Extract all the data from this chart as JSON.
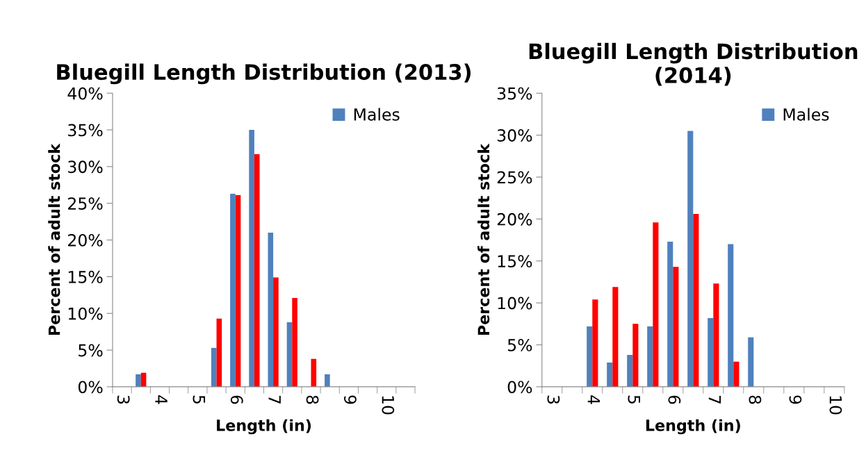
{
  "chart_data": [
    {
      "type": "bar",
      "title": "Bluegill Length Distribution (2013)",
      "xlabel": "Length (in)",
      "ylabel": "Percent of adult stock",
      "categories": [
        "3",
        null,
        "4",
        null,
        "5",
        null,
        "6",
        null,
        "7",
        null,
        "8",
        null,
        "9",
        null,
        "10",
        null
      ],
      "series": [
        {
          "name": "Males",
          "color": "#4f81bd",
          "values": [
            0,
            1.7,
            0,
            0,
            0,
            5.3,
            26.3,
            35,
            21,
            8.8,
            0,
            1.7,
            0,
            0,
            0,
            0
          ]
        },
        {
          "color": "#ff0000",
          "values": [
            0,
            1.9,
            0,
            0,
            0,
            9.3,
            26.1,
            31.7,
            14.9,
            12.1,
            3.8,
            0,
            0,
            0,
            0,
            0
          ]
        }
      ],
      "ylim": [
        0,
        40
      ],
      "yticks": [
        {
          "value": 0,
          "label": "0%"
        },
        {
          "value": 5,
          "label": "5%"
        },
        {
          "value": 10,
          "label": "10%"
        },
        {
          "value": 15,
          "label": "15%"
        },
        {
          "value": 20,
          "label": "20%"
        },
        {
          "value": 25,
          "label": "25%"
        },
        {
          "value": 30,
          "label": "30%"
        },
        {
          "value": 35,
          "label": "35%"
        },
        {
          "value": 40,
          "label": "40%"
        }
      ],
      "legend": "top right",
      "grid": false
    },
    {
      "type": "bar",
      "title": "Bluegill Length Distribution (2014)",
      "xlabel": "Length (in)",
      "ylabel": "Percent of adult stock",
      "categories": [
        "3",
        null,
        "4",
        null,
        "5",
        null,
        "6",
        null,
        "7",
        null,
        "8",
        null,
        "9",
        null,
        "10"
      ],
      "series": [
        {
          "name": "Males",
          "color": "#4f81bd",
          "values": [
            0,
            0,
            7.2,
            2.9,
            3.8,
            7.2,
            17.3,
            30.5,
            8.2,
            17.0,
            5.9,
            0,
            0,
            0,
            0
          ]
        },
        {
          "color": "#ff0000",
          "values": [
            0,
            0,
            10.4,
            11.9,
            7.5,
            19.6,
            14.3,
            20.6,
            12.3,
            3.0,
            0,
            0,
            0,
            0,
            0
          ]
        }
      ],
      "ylim": [
        0,
        35
      ],
      "yticks": [
        {
          "value": 0,
          "label": "0%"
        },
        {
          "value": 5,
          "label": "5%"
        },
        {
          "value": 10,
          "label": "10%"
        },
        {
          "value": 15,
          "label": "15%"
        },
        {
          "value": 20,
          "label": "20%"
        },
        {
          "value": 25,
          "label": "25%"
        },
        {
          "value": 30,
          "label": "30%"
        },
        {
          "value": 35,
          "label": "35%"
        }
      ],
      "legend": "top right",
      "grid": false
    }
  ]
}
